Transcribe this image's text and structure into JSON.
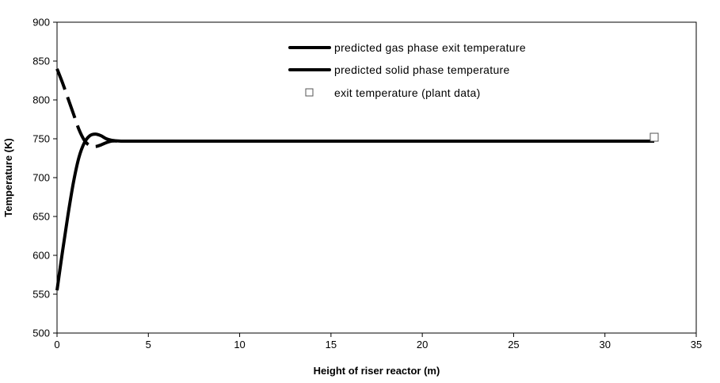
{
  "chart_data": {
    "type": "line",
    "xlabel": "Height of riser reactor (m)",
    "ylabel": "Temperature (K)",
    "xlim": [
      0,
      35
    ],
    "ylim": [
      500,
      900
    ],
    "x_ticks": [
      0,
      5,
      10,
      15,
      20,
      25,
      30,
      35
    ],
    "y_ticks": [
      500,
      550,
      600,
      650,
      700,
      750,
      800,
      850,
      900
    ],
    "grid": false,
    "legend_position": "top-right",
    "series": [
      {
        "name": "predicted gas phase exit temperature",
        "style": "solid",
        "x": [
          0,
          0.3,
          0.6,
          0.9,
          1.2,
          1.5,
          1.8,
          2.1,
          2.4,
          2.7,
          3.0,
          3.5,
          4,
          6,
          10,
          15,
          20,
          25,
          30,
          32.7
        ],
        "y": [
          555,
          605,
          652,
          694,
          726,
          745,
          754,
          756,
          754,
          750,
          748,
          747,
          747,
          747,
          747,
          747,
          747,
          747,
          747,
          747
        ]
      },
      {
        "name": "predicted solid phase temperature",
        "style": "dashed",
        "x": [
          0,
          0.3,
          0.6,
          0.9,
          1.2,
          1.5,
          1.8,
          2.1,
          2.4,
          2.7,
          3.0,
          3.5,
          4,
          6,
          10,
          15,
          20,
          25,
          30,
          32.7
        ],
        "y": [
          840,
          822,
          802,
          782,
          762,
          748,
          741,
          740,
          742,
          745,
          747,
          747,
          747,
          747,
          747,
          747,
          747,
          747,
          747,
          747
        ]
      },
      {
        "name": "exit temperature (plant data)",
        "style": "marker",
        "x": [
          32.7
        ],
        "y": [
          752
        ]
      }
    ]
  },
  "colors": {
    "line": "#000000",
    "axis": "#000000",
    "background": "#ffffff"
  }
}
